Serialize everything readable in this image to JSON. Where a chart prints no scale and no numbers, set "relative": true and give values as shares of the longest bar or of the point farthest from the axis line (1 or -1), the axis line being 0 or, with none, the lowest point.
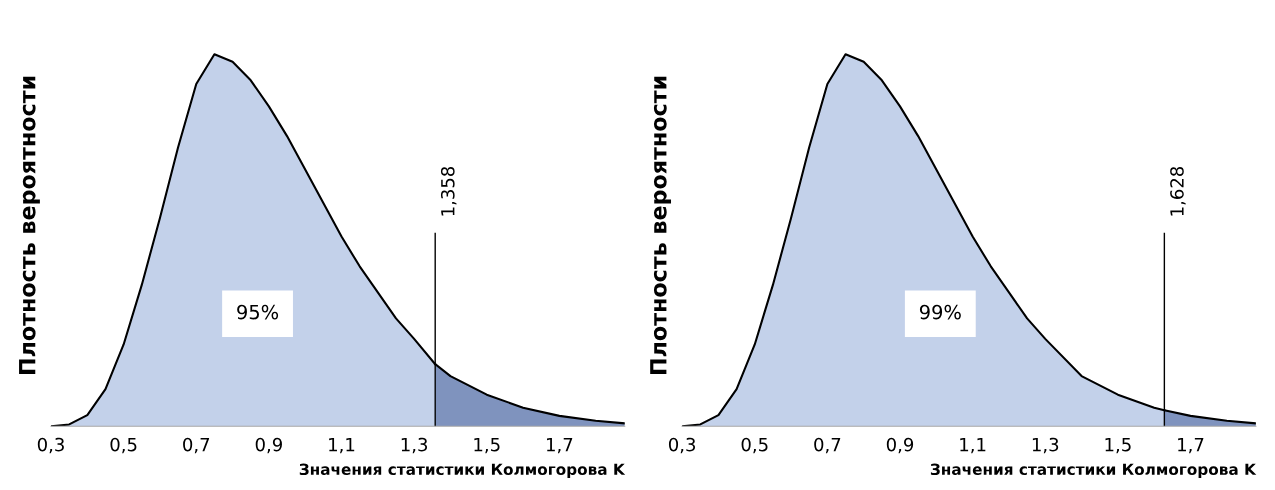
{
  "chart_data": [
    {
      "type": "area",
      "relative": true,
      "ylabel": "Плотность вероятности",
      "xlabel": "Значения статистики Колмогорова K",
      "xlim": [
        0.3,
        1.88
      ],
      "xticks": [
        {
          "value": 0.3,
          "label": "0,3"
        },
        {
          "value": 0.5,
          "label": "0,5"
        },
        {
          "value": 0.7,
          "label": "0,7"
        },
        {
          "value": 0.9,
          "label": "0,9"
        },
        {
          "value": 1.1,
          "label": "1,1"
        },
        {
          "value": 1.3,
          "label": "1,3"
        },
        {
          "value": 1.5,
          "label": "1,5"
        },
        {
          "value": 1.7,
          "label": "1,7"
        }
      ],
      "tick_labels": "x",
      "grid": false,
      "legend": false,
      "series": [
        {
          "color": "#c3d1ea",
          "x": [
            0.3,
            0.35,
            0.4,
            0.45,
            0.5,
            0.55,
            0.6,
            0.65,
            0.7,
            0.75,
            0.8,
            0.85,
            0.9,
            0.95,
            1.0,
            1.05,
            1.1,
            1.15,
            1.2,
            1.25,
            1.3,
            1.358
          ],
          "values": [
            0,
            0.005,
            0.03,
            0.1,
            0.22,
            0.38,
            0.56,
            0.75,
            0.92,
            1.0,
            0.98,
            0.93,
            0.86,
            0.78,
            0.69,
            0.6,
            0.51,
            0.43,
            0.36,
            0.29,
            0.235,
            0.167
          ]
        },
        {
          "color": "#7f93be",
          "x": [
            1.358,
            1.4,
            1.5,
            1.6,
            1.7,
            1.8,
            1.88
          ],
          "values": [
            0.167,
            0.135,
            0.085,
            0.05,
            0.028,
            0.015,
            0.008
          ]
        }
      ],
      "ref_lines": [
        {
          "axis": "x",
          "value": 1.358,
          "label": "1,358",
          "color": "#000000"
        }
      ],
      "annotations": [
        "95%"
      ]
    },
    {
      "type": "area",
      "relative": true,
      "ylabel": "Плотность вероятности",
      "xlabel": "Значения статистики Колмогорова K",
      "xlim": [
        0.3,
        1.88
      ],
      "xticks": [
        {
          "value": 0.3,
          "label": "0,3"
        },
        {
          "value": 0.5,
          "label": "0,5"
        },
        {
          "value": 0.7,
          "label": "0,7"
        },
        {
          "value": 0.9,
          "label": "0,9"
        },
        {
          "value": 1.1,
          "label": "1,1"
        },
        {
          "value": 1.3,
          "label": "1,3"
        },
        {
          "value": 1.5,
          "label": "1,5"
        },
        {
          "value": 1.7,
          "label": "1,7"
        }
      ],
      "tick_labels": "x",
      "grid": false,
      "legend": false,
      "series": [
        {
          "color": "#c3d1ea",
          "x": [
            0.3,
            0.35,
            0.4,
            0.45,
            0.5,
            0.55,
            0.6,
            0.65,
            0.7,
            0.75,
            0.8,
            0.85,
            0.9,
            0.95,
            1.0,
            1.05,
            1.1,
            1.15,
            1.2,
            1.25,
            1.3,
            1.4,
            1.5,
            1.6,
            1.628
          ],
          "values": [
            0,
            0.005,
            0.03,
            0.1,
            0.22,
            0.38,
            0.56,
            0.75,
            0.92,
            1.0,
            0.98,
            0.93,
            0.86,
            0.78,
            0.69,
            0.6,
            0.51,
            0.43,
            0.36,
            0.29,
            0.235,
            0.135,
            0.085,
            0.05,
            0.043
          ]
        },
        {
          "color": "#7f93be",
          "x": [
            1.628,
            1.7,
            1.8,
            1.88
          ],
          "values": [
            0.043,
            0.028,
            0.015,
            0.008
          ]
        }
      ],
      "ref_lines": [
        {
          "axis": "x",
          "value": 1.628,
          "label": "1,628",
          "color": "#000000"
        }
      ],
      "annotations": [
        "99%"
      ]
    }
  ]
}
